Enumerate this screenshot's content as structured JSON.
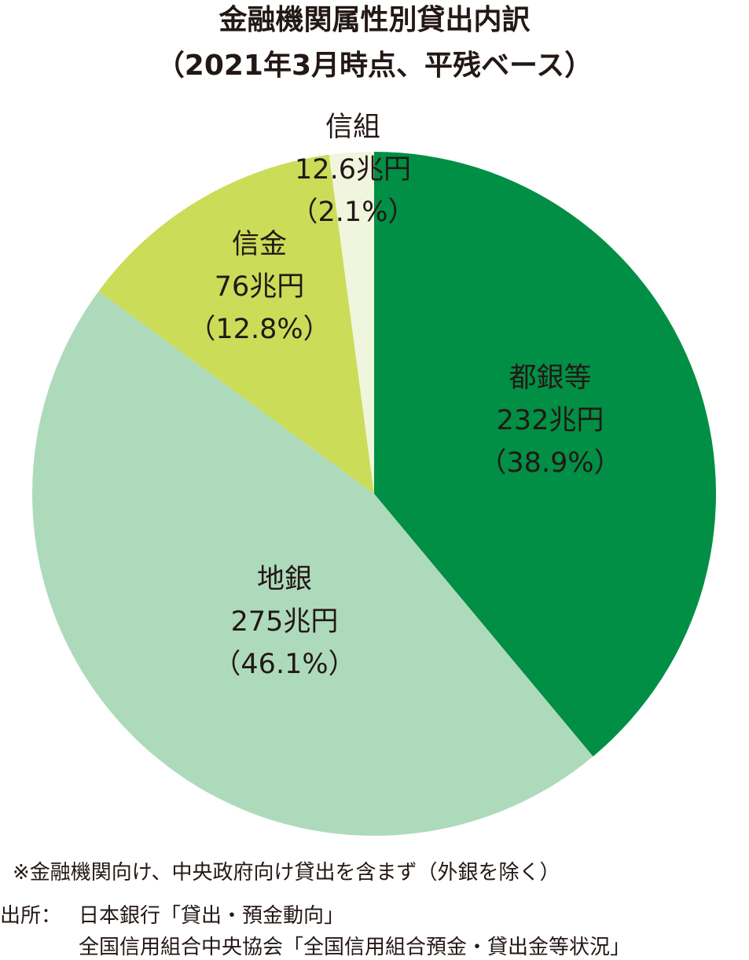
{
  "chart_data": {
    "type": "pie",
    "title": "金融機関属性別貸出内訳",
    "subtitle": "（2021年3月時点、平残ベース）",
    "slices": [
      {
        "label": "都銀等",
        "amount": "232兆円",
        "percent_text": "（38.9%）",
        "value": 38.9,
        "color": "#008f45"
      },
      {
        "label": "地銀",
        "amount": "275兆円",
        "percent_text": "（46.1%）",
        "value": 46.1,
        "color": "#aedabc"
      },
      {
        "label": "信金",
        "amount": "76兆円",
        "percent_text": "（12.8%）",
        "value": 12.8,
        "color": "#cbdc58"
      },
      {
        "label": "信組",
        "amount": "12.6兆円",
        "percent_text": "（2.1%）",
        "value": 2.1,
        "color": "#f0f5dd"
      }
    ]
  },
  "footnote": "※金融機関向け、中央政府向け貸出を含まず（外銀を除く）",
  "source": {
    "label": "出所：",
    "line1": "日本銀行「貸出・預金動向」",
    "line2": "全国信用組合中央協会「全国信用組合預金・貸出金等状況」"
  }
}
